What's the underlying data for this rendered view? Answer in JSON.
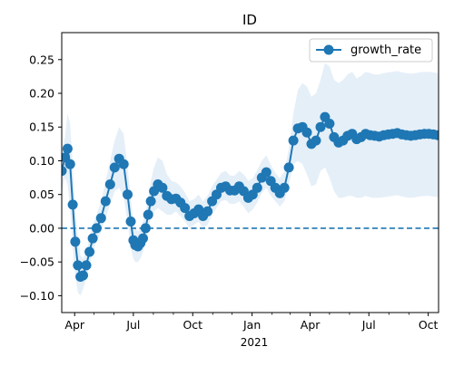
{
  "chart_data": {
    "type": "line",
    "title": "ID",
    "xlabel": "",
    "ylabel": "",
    "x_tick_labels": [
      "Apr",
      "Jul",
      "Oct",
      "Jan",
      "Apr",
      "Jul",
      "Oct"
    ],
    "x_secondary_label": "2021",
    "x_ticks": [
      "2020-04-01",
      "2020-07-01",
      "2020-10-01",
      "2021-01-01",
      "2021-04-01",
      "2021-07-01",
      "2021-10-01"
    ],
    "xlim": [
      "2020-03-12",
      "2021-10-17"
    ],
    "ylim": [
      -0.125,
      0.29
    ],
    "y_ticks": [
      -0.1,
      -0.05,
      0.0,
      0.05,
      0.1,
      0.15,
      0.2,
      0.25
    ],
    "y_tick_labels": [
      "−0.10",
      "−0.05",
      "0.00",
      "0.05",
      "0.10",
      "0.15",
      "0.20",
      "0.25"
    ],
    "legend": {
      "position": "top-right",
      "entries": [
        "growth_rate"
      ]
    },
    "reference_line": {
      "y": 0.0,
      "style": "dashed"
    },
    "colors": {
      "series": "#1f77b4",
      "band": "#c6dbef"
    },
    "series": [
      {
        "name": "growth_rate",
        "marker": "circle",
        "x": [
          "2020-03-12",
          "2020-03-17",
          "2020-03-21",
          "2020-03-25",
          "2020-03-29",
          "2020-04-02",
          "2020-04-06",
          "2020-04-10",
          "2020-04-14",
          "2020-04-19",
          "2020-04-24",
          "2020-04-29",
          "2020-05-05",
          "2020-05-12",
          "2020-05-19",
          "2020-05-26",
          "2020-06-02",
          "2020-06-09",
          "2020-06-16",
          "2020-06-22",
          "2020-06-27",
          "2020-07-01",
          "2020-07-04",
          "2020-07-08",
          "2020-07-12",
          "2020-07-16",
          "2020-07-20",
          "2020-07-24",
          "2020-07-28",
          "2020-08-02",
          "2020-08-08",
          "2020-08-15",
          "2020-08-22",
          "2020-08-29",
          "2020-09-05",
          "2020-09-12",
          "2020-09-19",
          "2020-09-26",
          "2020-10-03",
          "2020-10-10",
          "2020-10-17",
          "2020-10-24",
          "2020-10-31",
          "2020-11-07",
          "2020-11-14",
          "2020-11-21",
          "2020-11-28",
          "2020-12-05",
          "2020-12-12",
          "2020-12-19",
          "2020-12-26",
          "2021-01-02",
          "2021-01-09",
          "2021-01-16",
          "2021-01-23",
          "2021-01-30",
          "2021-02-06",
          "2021-02-13",
          "2021-02-20",
          "2021-02-27",
          "2021-03-06",
          "2021-03-13",
          "2021-03-20",
          "2021-03-27",
          "2021-04-03",
          "2021-04-10",
          "2021-04-17",
          "2021-04-24",
          "2021-05-01",
          "2021-05-08",
          "2021-05-15",
          "2021-05-22",
          "2021-05-29",
          "2021-06-05",
          "2021-06-12",
          "2021-06-19",
          "2021-06-26",
          "2021-07-03",
          "2021-07-10",
          "2021-07-17",
          "2021-07-24",
          "2021-07-31",
          "2021-08-07",
          "2021-08-14",
          "2021-08-21",
          "2021-08-28",
          "2021-09-04",
          "2021-09-11",
          "2021-09-18",
          "2021-09-25",
          "2021-10-02",
          "2021-10-09",
          "2021-10-16"
        ],
        "values": [
          0.085,
          0.105,
          0.118,
          0.095,
          0.035,
          -0.02,
          -0.055,
          -0.072,
          -0.07,
          -0.055,
          -0.035,
          -0.015,
          0.0,
          0.015,
          0.04,
          0.065,
          0.09,
          0.103,
          0.095,
          0.05,
          0.01,
          -0.018,
          -0.025,
          -0.027,
          -0.022,
          -0.015,
          0.0,
          0.02,
          0.04,
          0.055,
          0.065,
          0.06,
          0.048,
          0.043,
          0.044,
          0.038,
          0.03,
          0.018,
          0.022,
          0.028,
          0.018,
          0.025,
          0.04,
          0.05,
          0.06,
          0.062,
          0.056,
          0.056,
          0.062,
          0.055,
          0.045,
          0.05,
          0.06,
          0.075,
          0.083,
          0.07,
          0.06,
          0.052,
          0.06,
          0.09,
          0.13,
          0.148,
          0.15,
          0.142,
          0.125,
          0.13,
          0.15,
          0.165,
          0.155,
          0.135,
          0.127,
          0.13,
          0.137,
          0.14,
          0.132,
          0.135,
          0.14,
          0.138,
          0.137,
          0.136,
          0.138,
          0.139,
          0.14,
          0.141,
          0.139,
          0.138,
          0.137,
          0.138,
          0.139,
          0.14,
          0.14,
          0.139,
          0.138
        ],
        "ci_low": [
          0.055,
          0.075,
          0.065,
          0.03,
          -0.03,
          -0.07,
          -0.095,
          -0.1,
          -0.09,
          -0.075,
          -0.055,
          -0.035,
          -0.02,
          -0.005,
          0.015,
          0.035,
          0.055,
          0.06,
          0.045,
          0.01,
          -0.03,
          -0.045,
          -0.05,
          -0.05,
          -0.045,
          -0.035,
          -0.02,
          0.0,
          0.015,
          0.025,
          0.03,
          0.025,
          0.02,
          0.02,
          0.025,
          0.018,
          0.01,
          0.0,
          0.005,
          0.01,
          0.0,
          0.005,
          0.02,
          0.03,
          0.04,
          0.042,
          0.036,
          0.036,
          0.04,
          0.032,
          0.022,
          0.028,
          0.038,
          0.052,
          0.06,
          0.048,
          0.04,
          0.032,
          0.04,
          0.065,
          0.095,
          0.1,
          0.095,
          0.08,
          0.062,
          0.065,
          0.085,
          0.09,
          0.075,
          0.055,
          0.045,
          0.045,
          0.048,
          0.048,
          0.045,
          0.045,
          0.048,
          0.046,
          0.045,
          0.045,
          0.046,
          0.047,
          0.048,
          0.049,
          0.047,
          0.046,
          0.045,
          0.046,
          0.047,
          0.048,
          0.048,
          0.047,
          0.046
        ],
        "ci_high": [
          0.115,
          0.135,
          0.17,
          0.155,
          0.095,
          0.025,
          -0.01,
          -0.04,
          -0.045,
          -0.035,
          -0.015,
          0.005,
          0.02,
          0.04,
          0.07,
          0.1,
          0.13,
          0.15,
          0.14,
          0.09,
          0.045,
          0.01,
          0.0,
          -0.005,
          0.0,
          0.01,
          0.025,
          0.045,
          0.07,
          0.09,
          0.105,
          0.1,
          0.08,
          0.07,
          0.068,
          0.062,
          0.053,
          0.04,
          0.043,
          0.05,
          0.04,
          0.048,
          0.062,
          0.072,
          0.082,
          0.085,
          0.078,
          0.078,
          0.085,
          0.08,
          0.07,
          0.074,
          0.086,
          0.1,
          0.108,
          0.094,
          0.082,
          0.074,
          0.084,
          0.118,
          0.17,
          0.205,
          0.215,
          0.21,
          0.195,
          0.2,
          0.22,
          0.245,
          0.24,
          0.22,
          0.215,
          0.22,
          0.228,
          0.232,
          0.222,
          0.226,
          0.232,
          0.23,
          0.228,
          0.228,
          0.23,
          0.231,
          0.232,
          0.233,
          0.231,
          0.23,
          0.229,
          0.23,
          0.231,
          0.232,
          0.232,
          0.231,
          0.23
        ]
      }
    ]
  }
}
